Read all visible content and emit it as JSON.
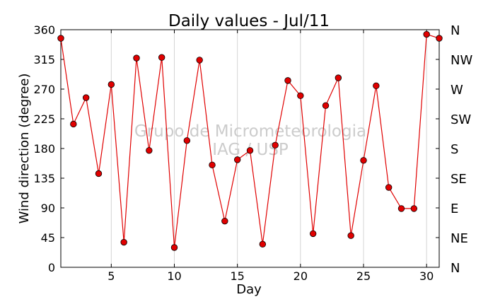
{
  "chart_data": {
    "type": "line",
    "title": "Daily values - Jul/11",
    "xlabel": "Day",
    "ylabel": "Wind direction (degree)",
    "xlim": [
      1,
      31
    ],
    "ylim": [
      0,
      360
    ],
    "xticks": [
      5,
      10,
      15,
      20,
      25,
      30
    ],
    "yticks": [
      0,
      45,
      90,
      135,
      180,
      225,
      270,
      315,
      360
    ],
    "right_ticks": [
      {
        "value": 0,
        "label": "N"
      },
      {
        "value": 45,
        "label": "NE"
      },
      {
        "value": 90,
        "label": "E"
      },
      {
        "value": 135,
        "label": "SE"
      },
      {
        "value": 180,
        "label": "S"
      },
      {
        "value": 225,
        "label": "SW"
      },
      {
        "value": 270,
        "label": "W"
      },
      {
        "value": 315,
        "label": "NW"
      },
      {
        "value": 360,
        "label": "N"
      }
    ],
    "grid": "vertical",
    "watermark": [
      "Grupo de Micrometeorologia",
      "IAG / USP"
    ],
    "series": [
      {
        "color": "#e00000",
        "marker_color": "#e00000",
        "x": [
          1,
          2,
          3,
          4,
          5,
          6,
          7,
          8,
          9,
          10,
          11,
          12,
          13,
          14,
          15,
          16,
          17,
          18,
          19,
          20,
          21,
          22,
          23,
          24,
          25,
          26,
          27,
          28,
          29,
          30,
          31
        ],
        "values": [
          347,
          217,
          257,
          142,
          277,
          38,
          317,
          177,
          318,
          30,
          192,
          314,
          155,
          70,
          163,
          177,
          35,
          185,
          283,
          260,
          51,
          245,
          287,
          48,
          162,
          275,
          121,
          89,
          89,
          353,
          347
        ]
      }
    ]
  }
}
